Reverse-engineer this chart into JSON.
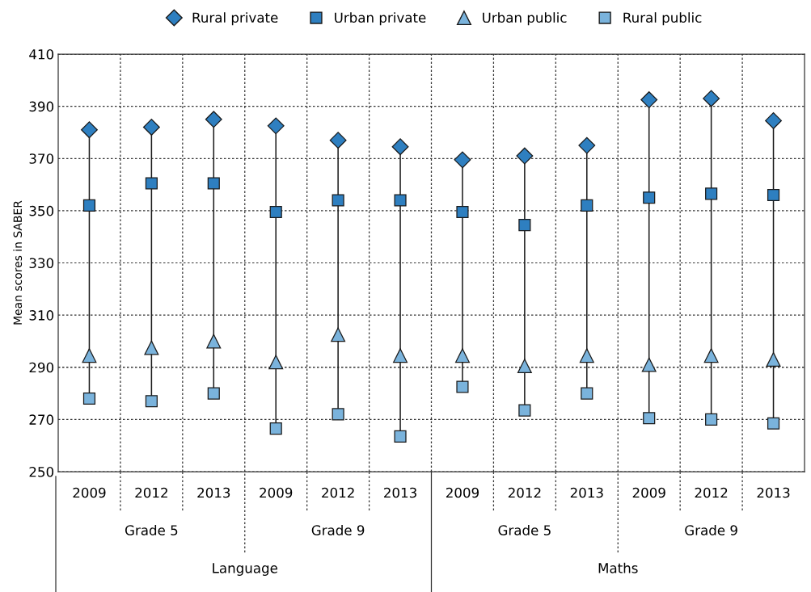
{
  "chart_data": {
    "type": "scatter",
    "ylabel": "Mean scores in SABER",
    "categories": [
      "2009",
      "2012",
      "2013",
      "2009",
      "2012",
      "2013",
      "2009",
      "2012",
      "2013",
      "2009",
      "2012",
      "2013"
    ],
    "series": [
      {
        "name": "Rural private",
        "color": "#2e7fc0",
        "marker": "diamond",
        "values": [
          381,
          382,
          385,
          382.5,
          377,
          374.5,
          369.5,
          371,
          375,
          392.5,
          393,
          384.5
        ]
      },
      {
        "name": "Urban private",
        "color": "#2e7fc0",
        "marker": "square",
        "values": [
          352,
          360.5,
          360.5,
          349.5,
          354,
          354,
          349.5,
          344.5,
          352,
          355,
          356.5,
          356
        ]
      },
      {
        "name": "Urban public",
        "color": "#7ab3dc",
        "marker": "triangle",
        "values": [
          294.5,
          297.5,
          300,
          292,
          302.5,
          294.5,
          294.5,
          290.5,
          294.5,
          291,
          294.5,
          293
        ]
      },
      {
        "name": "Rural public",
        "color": "#7ab3dc",
        "marker": "square",
        "values": [
          278,
          277,
          280,
          266.5,
          272,
          263.5,
          282.5,
          273.5,
          280,
          270.5,
          270,
          268.5
        ]
      }
    ],
    "annotations": [
      "Grade 5",
      "Grade 9",
      "Grade 5",
      "Grade 9",
      "Language",
      "Maths"
    ],
    "ylim": [
      250,
      410
    ],
    "yticks": [
      250,
      270,
      290,
      310,
      330,
      350,
      370,
      390,
      410
    ],
    "grid": true,
    "legend": "top"
  }
}
